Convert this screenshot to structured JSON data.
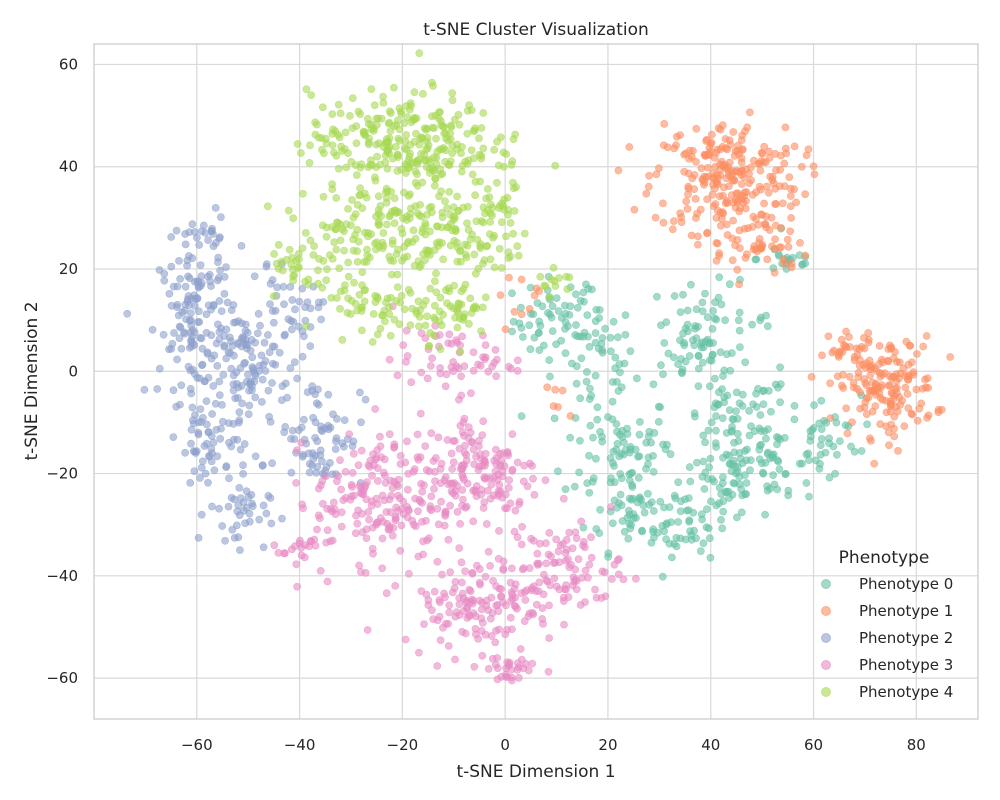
{
  "chart_data": {
    "type": "scatter",
    "title": "t-SNE Cluster Visualization",
    "xlabel": "t-SNE Dimension 1",
    "ylabel": "t-SNE Dimension 2",
    "xlim": [
      -80,
      92
    ],
    "ylim": [
      -68,
      64
    ],
    "xticks": [
      -60,
      -40,
      -20,
      0,
      20,
      40,
      60,
      80
    ],
    "yticks": [
      -60,
      -40,
      -20,
      0,
      20,
      40,
      60
    ],
    "grid": true,
    "legend_title": "Phenotype",
    "legend_position": "lower-right",
    "marker_opacity": 0.6,
    "series": [
      {
        "name": "Phenotype 0",
        "color": "#66c2a5",
        "regions": [
          {
            "center": [
              10,
              10
            ],
            "spread": [
              7,
              7
            ],
            "count": 55
          },
          {
            "center": [
              18,
              2
            ],
            "spread": [
              6,
              10
            ],
            "count": 50
          },
          {
            "center": [
              22,
              -15
            ],
            "spread": [
              9,
              9
            ],
            "count": 75
          },
          {
            "center": [
              25,
              -28
            ],
            "spread": [
              8,
              6
            ],
            "count": 50
          },
          {
            "center": [
              35,
              -30
            ],
            "spread": [
              7,
              5
            ],
            "count": 40
          },
          {
            "center": [
              40,
              10
            ],
            "spread": [
              10,
              6
            ],
            "count": 50
          },
          {
            "center": [
              36,
              3
            ],
            "spread": [
              6,
              5
            ],
            "count": 30
          },
          {
            "center": [
              55,
              22
            ],
            "spread": [
              5,
              3
            ],
            "count": 20
          },
          {
            "center": [
              45,
              -10
            ],
            "spread": [
              9,
              8
            ],
            "count": 70
          },
          {
            "center": [
              52,
              -18
            ],
            "spread": [
              12,
              6
            ],
            "count": 70
          },
          {
            "center": [
              42,
              -22
            ],
            "spread": [
              6,
              6
            ],
            "count": 35
          },
          {
            "center": [
              62,
              -12
            ],
            "spread": [
              6,
              6
            ],
            "count": 30
          }
        ]
      },
      {
        "name": "Phenotype 1",
        "color": "#fc8d62",
        "regions": [
          {
            "center": [
              43,
              38
            ],
            "spread": [
              12,
              9
            ],
            "count": 230
          },
          {
            "center": [
              48,
              25
            ],
            "spread": [
              9,
              6
            ],
            "count": 60
          },
          {
            "center": [
              74,
              -3
            ],
            "spread": [
              8,
              8
            ],
            "count": 160
          },
          {
            "center": [
              67,
              4
            ],
            "spread": [
              4,
              3
            ],
            "count": 20
          },
          {
            "center": [
              5,
              15
            ],
            "spread": [
              6,
              4
            ],
            "count": 10
          },
          {
            "center": [
              10,
              -6
            ],
            "spread": [
              4,
              3
            ],
            "count": 6
          }
        ]
      },
      {
        "name": "Phenotype 2",
        "color": "#8da0cb",
        "regions": [
          {
            "center": [
              -60,
              10
            ],
            "spread": [
              6,
              13
            ],
            "count": 140
          },
          {
            "center": [
              -57,
              -15
            ],
            "spread": [
              6,
              8
            ],
            "count": 60
          },
          {
            "center": [
              -50,
              0
            ],
            "spread": [
              7,
              12
            ],
            "count": 100
          },
          {
            "center": [
              -42,
              10
            ],
            "spread": [
              5,
              7
            ],
            "count": 40
          },
          {
            "center": [
              -36,
              -12
            ],
            "spread": [
              7,
              9
            ],
            "count": 70
          },
          {
            "center": [
              -52,
              -28
            ],
            "spread": [
              5,
              5
            ],
            "count": 35
          },
          {
            "center": [
              -58,
              27
            ],
            "spread": [
              4,
              4
            ],
            "count": 20
          }
        ]
      },
      {
        "name": "Phenotype 3",
        "color": "#e78ac3",
        "regions": [
          {
            "center": [
              -25,
              -25
            ],
            "spread": [
              10,
              10
            ],
            "count": 170
          },
          {
            "center": [
              -5,
              -20
            ],
            "spread": [
              10,
              10
            ],
            "count": 160
          },
          {
            "center": [
              -5,
              -45
            ],
            "spread": [
              13,
              7
            ],
            "count": 150
          },
          {
            "center": [
              12,
              -38
            ],
            "spread": [
              9,
              7
            ],
            "count": 80
          },
          {
            "center": [
              -10,
              2
            ],
            "spread": [
              10,
              5
            ],
            "count": 60
          },
          {
            "center": [
              0,
              -58
            ],
            "spread": [
              5,
              3
            ],
            "count": 30
          },
          {
            "center": [
              -40,
              -35
            ],
            "spread": [
              4,
              4
            ],
            "count": 20
          }
        ]
      },
      {
        "name": "Phenotype 4",
        "color": "#a6d854",
        "regions": [
          {
            "center": [
              -20,
              45
            ],
            "spread": [
              15,
              8
            ],
            "count": 260
          },
          {
            "center": [
              -25,
              28
            ],
            "spread": [
              12,
              8
            ],
            "count": 140
          },
          {
            "center": [
              -10,
              28
            ],
            "spread": [
              8,
              10
            ],
            "count": 90
          },
          {
            "center": [
              -25,
              12
            ],
            "spread": [
              8,
              6
            ],
            "count": 60
          },
          {
            "center": [
              -10,
              12
            ],
            "spread": [
              6,
              5
            ],
            "count": 50
          },
          {
            "center": [
              0,
              30
            ],
            "spread": [
              4,
              10
            ],
            "count": 40
          },
          {
            "center": [
              -40,
              20
            ],
            "spread": [
              5,
              5
            ],
            "count": 30
          },
          {
            "center": [
              10,
              17
            ],
            "spread": [
              3,
              3
            ],
            "count": 12
          }
        ]
      }
    ]
  }
}
